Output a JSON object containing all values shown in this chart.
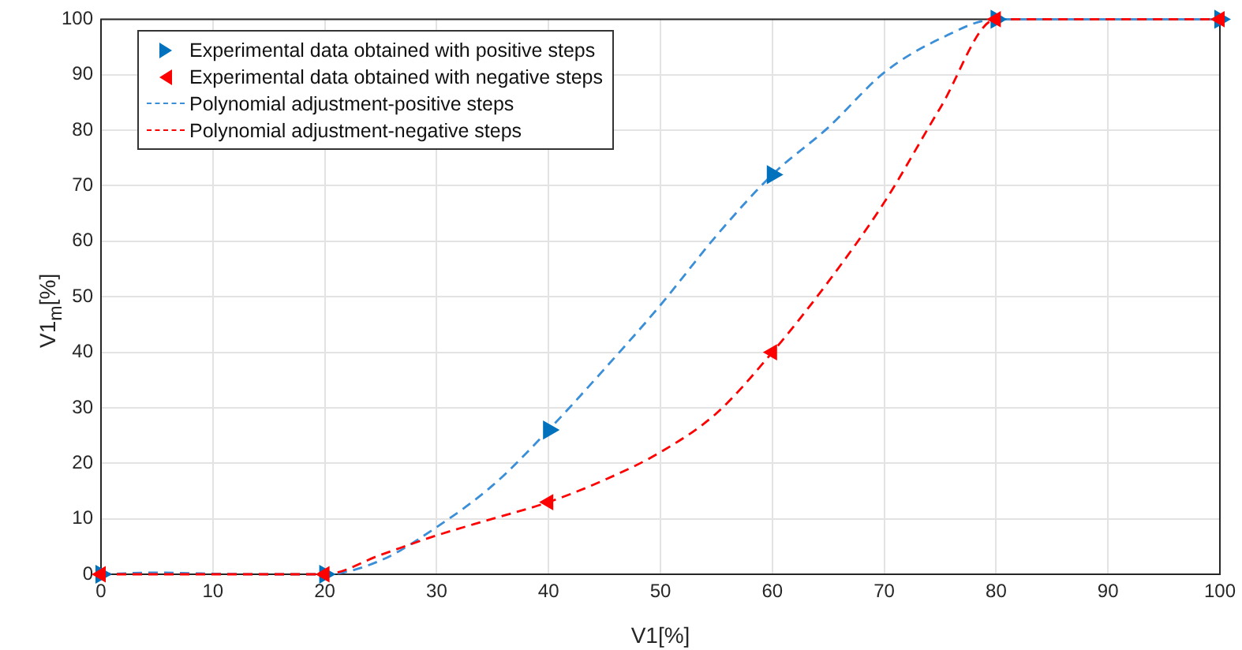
{
  "chart_data": {
    "type": "line",
    "xlabel": "V1[%]",
    "ylabel": "V1$_{m}$[%]",
    "xlim": [
      0,
      100
    ],
    "xticks": [
      0,
      10,
      20,
      30,
      40,
      50,
      60,
      70,
      80,
      90,
      100
    ],
    "ylim": [
      0,
      100
    ],
    "yticks": [
      0,
      10,
      20,
      30,
      40,
      50,
      60,
      70,
      80,
      90,
      100
    ],
    "grid": true,
    "legend": "top left",
    "series": [
      {
        "name": "Experimental data obtained with positive steps",
        "type": "scatter",
        "marker": "triangle",
        "color": "#0072bd",
        "x": [
          0,
          20,
          40,
          60,
          80,
          100
        ],
        "values": [
          0,
          0,
          26,
          72,
          100,
          100
        ]
      },
      {
        "name": "Experimental data obtained with negative steps",
        "type": "scatter",
        "marker": "triangle",
        "color": "#ff0000",
        "x": [
          0,
          20,
          40,
          60,
          80,
          100
        ],
        "values": [
          0,
          0,
          13,
          40,
          100,
          100
        ]
      },
      {
        "name": "Polynomial adjustment-positive steps",
        "type": "line",
        "marker": "none",
        "line_style": "dashed",
        "color": "#3a8fd8",
        "x": [
          0,
          5,
          10,
          15,
          20,
          25,
          30,
          35,
          40,
          45,
          50,
          55,
          60,
          65,
          70,
          75,
          80,
          100
        ],
        "values": [
          0,
          0.3,
          0.1,
          0,
          0,
          2.5,
          8.5,
          16,
          26,
          37,
          48.5,
          61,
          72,
          80.5,
          90.4,
          96.5,
          100,
          100
        ]
      },
      {
        "name": "Polynomial adjustment-negative steps",
        "type": "line",
        "marker": "none",
        "line_style": "dashed",
        "color": "#ff0000",
        "x": [
          0,
          5,
          10,
          15,
          20,
          25,
          30,
          35,
          40,
          45,
          50,
          55,
          60,
          65,
          70,
          75,
          80,
          100
        ],
        "values": [
          0,
          0,
          0,
          0,
          0,
          3.5,
          7,
          10,
          13,
          17,
          22,
          29,
          40,
          52.7,
          67,
          84,
          100,
          100
        ]
      }
    ]
  }
}
